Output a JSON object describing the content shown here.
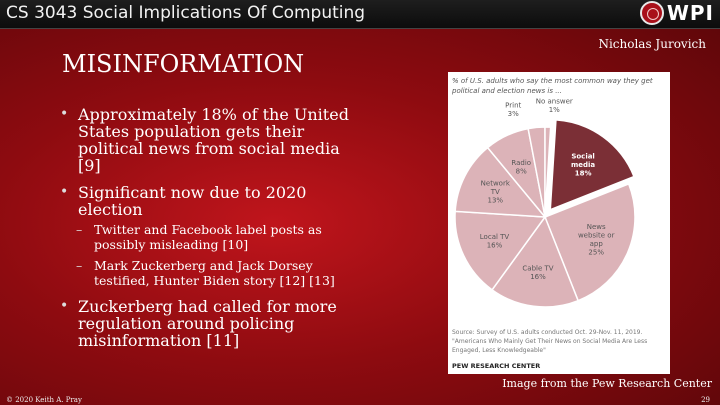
{
  "header": {
    "course": "CS 3043 Social Implications Of Computing",
    "logo_text": "WPI"
  },
  "author": "Nicholas Jurovich",
  "slide_title": "MISINFORMATION",
  "bullets": [
    {
      "text": "Approximately 18% of the United States population gets their political news from social media [9]",
      "sub": []
    },
    {
      "text": "Significant now due to 2020 election",
      "sub": [
        "Twitter and Facebook label posts as possibly misleading [10]",
        "Mark Zuckerberg and Jack Dorsey testified, Hunter Biden story [12] [13]"
      ]
    },
    {
      "text": "Zuckerberg had called for more regulation around policing misinformation [11]",
      "sub": []
    }
  ],
  "chart_title": "% of U.S. adults who say the most common way they get political and election news is ...",
  "chart_source": "Source: Survey of U.S. adults conducted Oct. 29-Nov. 11, 2019. \"Americans Who Mainly Get Their News on Social Media Are Less Engaged, Less Knowledgeable\"",
  "chart_credit": "PEW RESEARCH CENTER",
  "image_caption": "Image from the Pew Research Center",
  "footer": {
    "copyright": "© 2020 Keith A. Pray",
    "page": "29"
  },
  "colors": {
    "highlight": "#7b2f36",
    "slice": "#dcb3b8",
    "accent": "#a8101a"
  },
  "chart_data": {
    "type": "pie",
    "slices": [
      {
        "label": "Social media",
        "value": 18,
        "pct_label": "18%",
        "highlight": true
      },
      {
        "label": "News website or app",
        "value": 25,
        "pct_label": "25%",
        "highlight": false
      },
      {
        "label": "Cable TV",
        "value": 16,
        "pct_label": "16%",
        "highlight": false
      },
      {
        "label": "Local TV",
        "value": 16,
        "pct_label": "16%",
        "highlight": false
      },
      {
        "label": "Network TV",
        "value": 13,
        "pct_label": "13%",
        "highlight": false
      },
      {
        "label": "Radio",
        "value": 8,
        "pct_label": "8%",
        "highlight": false
      },
      {
        "label": "Print",
        "value": 3,
        "pct_label": "3%",
        "highlight": false
      },
      {
        "label": "No answer",
        "value": 1,
        "pct_label": "1%",
        "highlight": false
      }
    ]
  }
}
